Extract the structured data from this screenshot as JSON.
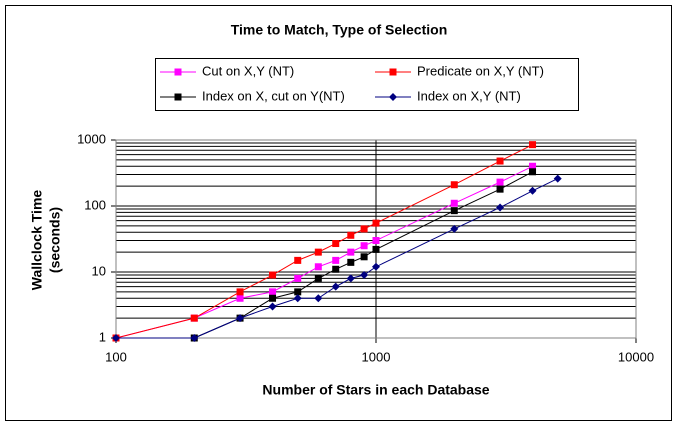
{
  "chart_data": {
    "type": "line",
    "title": "Time to Match, Type of Selection",
    "x_label": "Number of Stars in each Database",
    "y_label": [
      "Wallclock Time",
      "(seconds)"
    ],
    "xscale": "log",
    "yscale": "log",
    "xlim": [
      100,
      10000
    ],
    "xticks": [
      100,
      1000,
      10000
    ],
    "ylim": [
      1,
      1000
    ],
    "yticks": [
      1,
      10,
      100,
      1000
    ],
    "grid": true,
    "y_minor_grid": true,
    "series": [
      {
        "name": "Cut on X,Y (NT)",
        "color": "#ff00ff",
        "marker": "square",
        "x": [
          100,
          200,
          300,
          400,
          500,
          600,
          700,
          800,
          900,
          1000,
          2000,
          3000,
          4000
        ],
        "values": [
          1,
          2,
          4,
          5,
          8,
          12,
          15,
          20,
          25,
          30,
          110,
          230,
          400
        ]
      },
      {
        "name": "Predicate on X,Y (NT)",
        "color": "#ff0000",
        "marker": "square",
        "x": [
          100,
          200,
          300,
          400,
          500,
          600,
          700,
          800,
          900,
          1000,
          2000,
          3000,
          4000
        ],
        "values": [
          1,
          2,
          5,
          9,
          15,
          20,
          27,
          36,
          45,
          55,
          210,
          480,
          850
        ]
      },
      {
        "name": "Index on X, cut on Y(NT)",
        "color": "#000000",
        "marker": "square",
        "x": [
          200,
          300,
          400,
          500,
          600,
          700,
          800,
          900,
          1000,
          2000,
          3000,
          4000
        ],
        "values": [
          1,
          2,
          4,
          5,
          8,
          11,
          14,
          17,
          22,
          85,
          180,
          330
        ]
      },
      {
        "name": "Index on X,Y (NT)",
        "color": "#000080",
        "marker": "diamond",
        "x": [
          100,
          200,
          300,
          400,
          500,
          600,
          700,
          800,
          900,
          1000,
          2000,
          3000,
          4000,
          5000
        ],
        "values": [
          1,
          1,
          2,
          3,
          4,
          4,
          6,
          8,
          9,
          12,
          45,
          95,
          170,
          260
        ]
      }
    ]
  }
}
